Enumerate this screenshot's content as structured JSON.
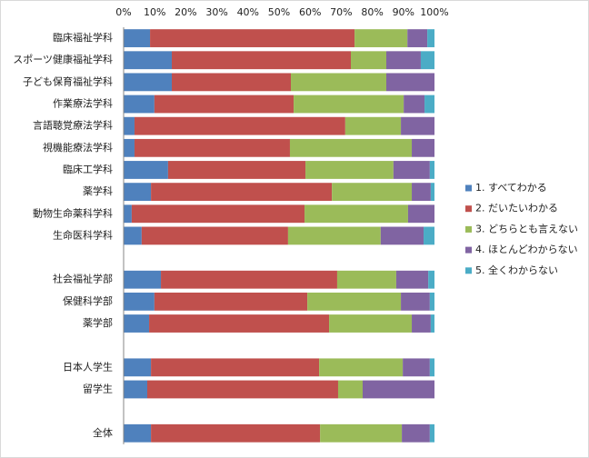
{
  "chart_data": {
    "type": "bar",
    "orientation": "horizontal",
    "stacked": true,
    "categories": [
      "臨床福祉学科",
      "スポーツ健康福祉学科",
      "子ども保育福祉学科",
      "作業療法学科",
      "言語聴覚療法学科",
      "視機能療法学科",
      "臨床工学科",
      "薬学科",
      "動物生命薬科学科",
      "生命医科学科",
      null,
      "社会福祉学部",
      "保健科学部",
      "薬学部",
      null,
      "日本人学生",
      "留学生",
      null,
      "全体"
    ],
    "series": [
      {
        "name": "1. すべてわかる",
        "color": "#4f81bd",
        "values": [
          8.5,
          15.5,
          15.5,
          9.9,
          3.5,
          3.5,
          14.3,
          8.8,
          2.6,
          5.8,
          null,
          12.0,
          9.9,
          8.2,
          null,
          8.8,
          7.6,
          null,
          8.8
        ]
      },
      {
        "name": "2. だいたいわかる",
        "color": "#c0504d",
        "values": [
          65.8,
          57.6,
          38.3,
          44.8,
          67.8,
          50.0,
          44.2,
          58.2,
          55.6,
          47.1,
          null,
          56.7,
          49.2,
          57.9,
          null,
          54.1,
          61.4,
          null,
          54.4
        ]
      },
      {
        "name": "3. どちらとも言えない",
        "color": "#9bbb59",
        "values": [
          17.0,
          11.4,
          30.7,
          35.4,
          17.9,
          39.2,
          28.3,
          25.7,
          33.3,
          29.8,
          null,
          19.0,
          30.1,
          26.6,
          null,
          26.9,
          7.9,
          null,
          26.3
        ]
      },
      {
        "name": "4. ほとんどわからない",
        "color": "#8064a2",
        "values": [
          6.4,
          11.1,
          15.5,
          6.7,
          10.8,
          7.3,
          11.7,
          6.1,
          8.5,
          13.8,
          null,
          10.3,
          9.3,
          6.1,
          null,
          8.7,
          23.1,
          null,
          9.0
        ]
      },
      {
        "name": "5. 全くわからない",
        "color": "#4bacc6",
        "values": [
          2.3,
          4.4,
          0,
          3.2,
          0,
          0,
          1.5,
          1.2,
          0,
          3.5,
          null,
          2.0,
          1.5,
          1.2,
          null,
          1.5,
          0,
          null,
          1.5
        ]
      }
    ],
    "xlim": [
      0,
      100
    ],
    "xticks": [
      {
        "value": 0,
        "label": "0%"
      },
      {
        "value": 10,
        "label": "10%"
      },
      {
        "value": 20,
        "label": "20%"
      },
      {
        "value": 30,
        "label": "30%"
      },
      {
        "value": 40,
        "label": "40%"
      },
      {
        "value": 50,
        "label": "50%"
      },
      {
        "value": 60,
        "label": "60%"
      },
      {
        "value": 70,
        "label": "70%"
      },
      {
        "value": 80,
        "label": "80%"
      },
      {
        "value": 90,
        "label": "90%"
      },
      {
        "value": 100,
        "label": "100%"
      }
    ],
    "grid": false,
    "legend": "right"
  }
}
